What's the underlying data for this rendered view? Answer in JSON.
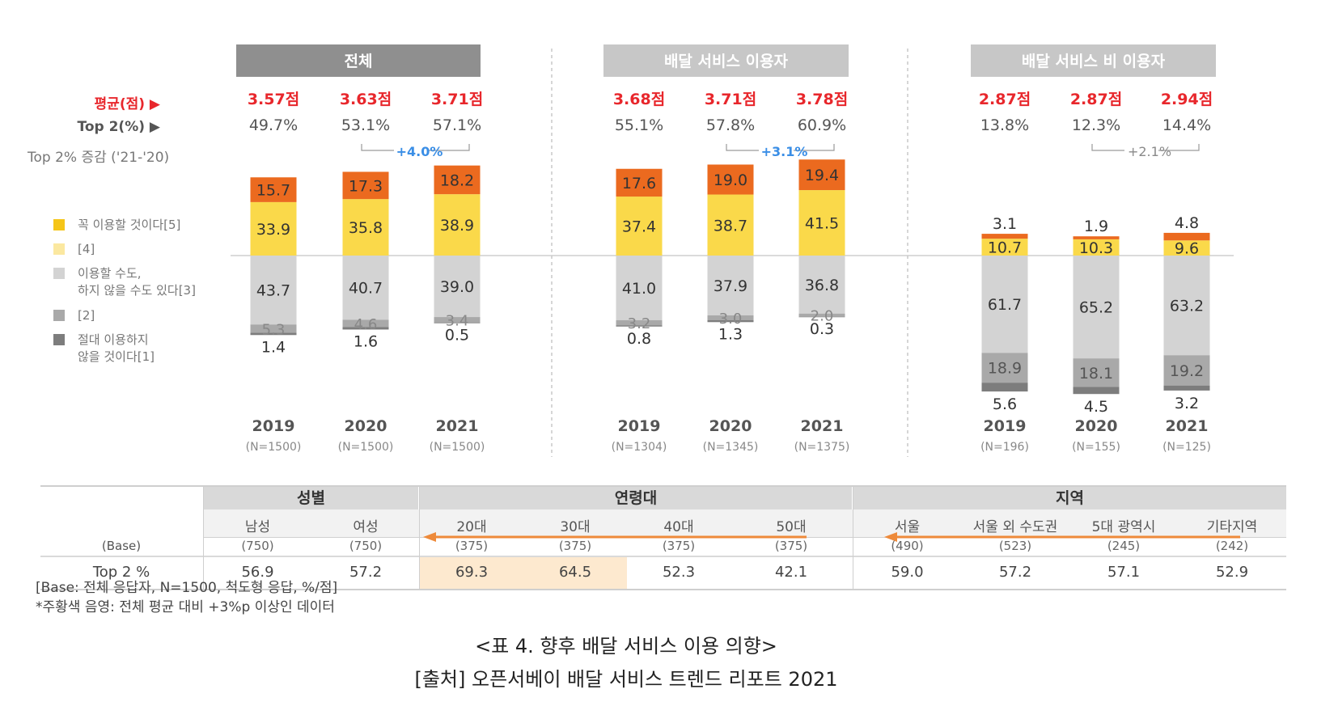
{
  "colors": {
    "c5": "#EB6A1F",
    "c4": "#FAD94A",
    "c3": "#D3D3D3",
    "c2": "#A9A9A9",
    "c1": "#7D7D7D",
    "avg_red": "#E8272C",
    "diff_blue": "#3A8EE6",
    "header_dark": "#8F8F8F",
    "header_light": "#C7C7C7",
    "highlight": "#FDE9CF",
    "arrow": "#EE8A3A"
  },
  "side_labels": {
    "avg": "평균(점) ▶",
    "top2": "Top 2(%) ▶",
    "change": "Top 2% 증감 ('21-'20)"
  },
  "legend": [
    {
      "label_lines": [
        "꼭 이용할 것이다[5]"
      ],
      "color_key": "c4"
    },
    {
      "label_lines": [
        "[4]"
      ],
      "color_key": "c4_light"
    },
    {
      "label_lines": [
        "이용할 수도,",
        "하지 않을 수도 있다[3]"
      ],
      "color_key": "c3"
    },
    {
      "label_lines": [
        "[2]"
      ],
      "color_key": "c2"
    },
    {
      "label_lines": [
        "절대 이용하지",
        "않을 것이다[1]"
      ],
      "color_key": "c1"
    }
  ],
  "chart_data": [
    {
      "type": "bar",
      "stacked": true,
      "title": "전체",
      "categories": [
        "2019",
        "2020",
        "2021"
      ],
      "n_labels": [
        "(N=1500)",
        "(N=1500)",
        "(N=1500)"
      ],
      "avg_labels": [
        "3.57점",
        "3.63점",
        "3.71점"
      ],
      "top2_labels": [
        "49.7%",
        "53.1%",
        "57.1%"
      ],
      "change_label": "+4.0%",
      "series": [
        {
          "key": "c5",
          "values": [
            15.7,
            17.3,
            18.2
          ]
        },
        {
          "key": "c4",
          "values": [
            33.9,
            35.8,
            38.9
          ]
        },
        {
          "key": "c3",
          "values": [
            43.7,
            40.7,
            39.0
          ]
        },
        {
          "key": "c2",
          "values": [
            5.3,
            4.6,
            3.4
          ]
        },
        {
          "key": "c1",
          "values": [
            1.4,
            1.6,
            0.5
          ]
        }
      ]
    },
    {
      "type": "bar",
      "stacked": true,
      "title": "배달 서비스 이용자",
      "categories": [
        "2019",
        "2020",
        "2021"
      ],
      "n_labels": [
        "(N=1304)",
        "(N=1345)",
        "(N=1375)"
      ],
      "avg_labels": [
        "3.68점",
        "3.71점",
        "3.78점"
      ],
      "top2_labels": [
        "55.1%",
        "57.8%",
        "60.9%"
      ],
      "change_label": "+3.1%",
      "series": [
        {
          "key": "c5",
          "values": [
            17.6,
            19.0,
            19.4
          ]
        },
        {
          "key": "c4",
          "values": [
            37.4,
            38.7,
            41.5
          ]
        },
        {
          "key": "c3",
          "values": [
            41.0,
            37.9,
            36.8
          ]
        },
        {
          "key": "c2",
          "values": [
            3.2,
            3.0,
            2.0
          ]
        },
        {
          "key": "c1",
          "values": [
            0.8,
            1.3,
            0.3
          ]
        }
      ]
    },
    {
      "type": "bar",
      "stacked": true,
      "title": "배달 서비스 비 이용자",
      "categories": [
        "2019",
        "2020",
        "2021"
      ],
      "n_labels": [
        "(N=196)",
        "(N=155)",
        "(N=125)"
      ],
      "avg_labels": [
        "2.87점",
        "2.87점",
        "2.94점"
      ],
      "top2_labels": [
        "13.8%",
        "12.3%",
        "14.4%"
      ],
      "change_label": "+2.1%",
      "series": [
        {
          "key": "c5",
          "values": [
            3.1,
            1.9,
            4.8
          ]
        },
        {
          "key": "c4",
          "values": [
            10.7,
            10.3,
            9.6
          ]
        },
        {
          "key": "c3",
          "values": [
            61.7,
            65.2,
            63.2
          ]
        },
        {
          "key": "c2",
          "values": [
            18.9,
            18.1,
            19.2
          ]
        },
        {
          "key": "c1",
          "values": [
            5.6,
            4.5,
            3.2
          ]
        }
      ]
    }
  ],
  "table": {
    "groups": [
      "성별",
      "연령대",
      "지역"
    ],
    "columns": [
      "남성",
      "여성",
      "20대",
      "30대",
      "40대",
      "50대",
      "서울",
      "서울 외 수도권",
      "5대 광역시",
      "기타지역"
    ],
    "base_label": "(Base)",
    "bases": [
      "(750)",
      "(750)",
      "(375)",
      "(375)",
      "(375)",
      "(375)",
      "(490)",
      "(523)",
      "(245)",
      "(242)"
    ],
    "top2_label": "Top 2 %",
    "top2": [
      "56.9",
      "57.2",
      "69.3",
      "64.5",
      "52.3",
      "42.1",
      "59.0",
      "57.2",
      "57.1",
      "52.9"
    ]
  },
  "notes": [
    "[Base: 전체 응답자, N=1500, 척도형 응답, %/점]",
    "*주황색 음영: 전체 평균 대비 +3%p 이상인 데이터"
  ],
  "caption": "<표 4. 향후 배달 서비스 이용 의향>",
  "source": "[출처] 오픈서베이 배달 서비스 트렌드 리포트 2021"
}
